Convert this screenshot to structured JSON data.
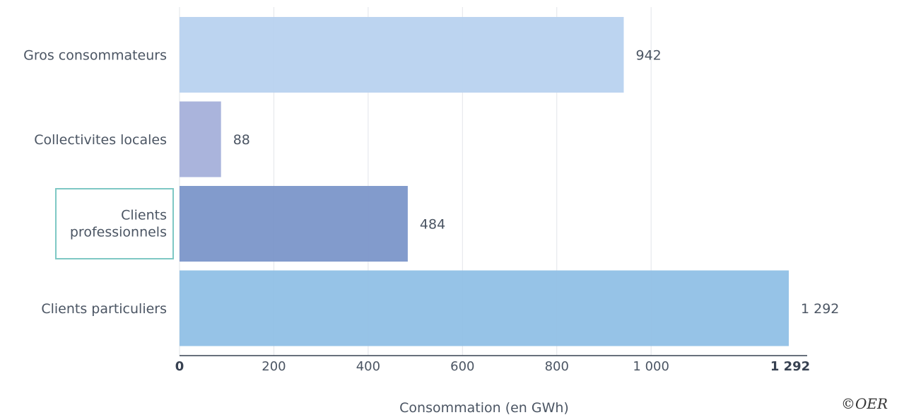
{
  "chart_data": {
    "type": "bar",
    "orientation": "horizontal",
    "categories": [
      "Gros consommateurs",
      "Collectivites locales",
      "Clients professionnels",
      "Clients particuliers"
    ],
    "values": [
      942,
      88,
      484,
      1292
    ],
    "value_labels": [
      "942",
      "88",
      "484",
      "1 292"
    ],
    "colors": [
      "#b8d2ef",
      "#a5b0da",
      "#7b96c9",
      "#90c0e6"
    ],
    "xlabel": "Consommation (en GWh)",
    "ylabel": "",
    "xlim": [
      0,
      1292
    ],
    "x_ticks": [
      {
        "value": 0,
        "label": "0",
        "bold": true
      },
      {
        "value": 200,
        "label": "200",
        "bold": false
      },
      {
        "value": 400,
        "label": "400",
        "bold": false
      },
      {
        "value": 600,
        "label": "600",
        "bold": false
      },
      {
        "value": 800,
        "label": "800",
        "bold": false
      },
      {
        "value": 1000,
        "label": "1 000",
        "bold": false
      },
      {
        "value": 1292,
        "label": "1 292",
        "bold": true
      }
    ],
    "grid": true,
    "highlighted_category": "Clients professionnels",
    "highlight_color": "#7ec8c4"
  },
  "copyright": "©OER"
}
